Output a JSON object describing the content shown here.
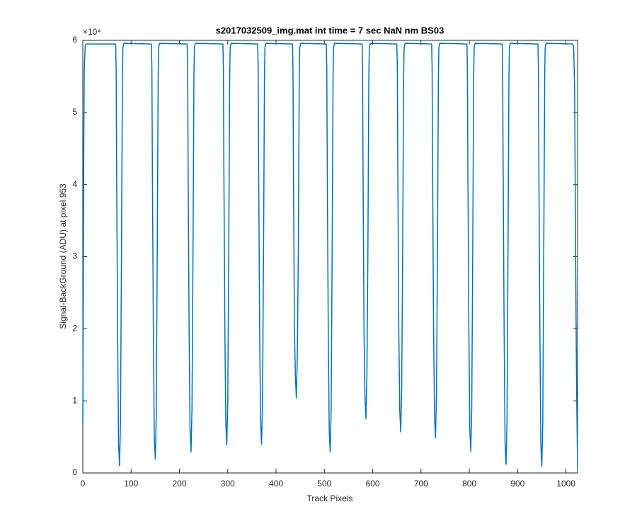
{
  "chart_data": {
    "type": "line",
    "title": "s2017032509_img.mat int time = 7 sec  NaN nm BS03",
    "x_label": "Track Pixels",
    "y_label": "Signal-BackGround (ADU) at pixel 953",
    "y_exponent": "×10⁴",
    "xlim": [
      0,
      1024
    ],
    "xticks": [
      0,
      100,
      200,
      300,
      400,
      500,
      600,
      700,
      800,
      900,
      1000
    ],
    "ylim": [
      0,
      6
    ],
    "yticks": [
      0,
      1,
      2,
      3,
      4,
      5,
      6
    ],
    "series": [
      {
        "color": "#0072bd",
        "x": [
          0,
          1,
          2,
          3,
          5,
          7,
          68,
          69,
          70,
          72,
          74,
          76,
          78,
          80,
          82,
          83,
          85,
          142,
          143,
          144,
          146,
          148,
          150,
          152,
          154,
          156,
          157,
          159,
          216,
          217,
          218,
          220,
          222,
          224,
          226,
          228,
          230,
          231,
          233,
          290,
          291,
          292,
          294,
          296,
          298,
          300,
          302,
          304,
          305,
          307,
          362,
          363,
          364,
          366,
          368,
          370,
          372,
          374,
          376,
          377,
          379,
          434,
          435,
          436,
          438,
          440,
          442,
          444,
          446,
          448,
          449,
          451,
          504,
          505,
          506,
          508,
          510,
          512,
          514,
          516,
          518,
          519,
          521,
          578,
          579,
          580,
          582,
          584,
          586,
          588,
          590,
          592,
          593,
          595,
          650,
          651,
          652,
          654,
          656,
          658,
          660,
          662,
          664,
          665,
          667,
          722,
          723,
          724,
          726,
          728,
          730,
          732,
          734,
          736,
          737,
          739,
          795,
          796,
          797,
          799,
          801,
          803,
          805,
          807,
          809,
          810,
          812,
          868,
          869,
          870,
          872,
          874,
          876,
          878,
          880,
          882,
          883,
          885,
          942,
          943,
          944,
          946,
          948,
          950,
          952,
          954,
          956,
          957,
          959,
          1014,
          1016,
          1018,
          1020,
          1022,
          1024
        ],
        "values": [
          0.68,
          2.5,
          4.5,
          5.6,
          5.93,
          5.95,
          5.95,
          5.6,
          4.2,
          2.0,
          0.4,
          0.1,
          0.7,
          3.0,
          5.5,
          5.9,
          5.96,
          5.95,
          5.6,
          4.2,
          2.0,
          0.49,
          0.19,
          0.79,
          3.0,
          5.5,
          5.9,
          5.96,
          5.95,
          5.6,
          4.2,
          2.0,
          0.59,
          0.29,
          0.89,
          3.0,
          5.5,
          5.9,
          5.96,
          5.95,
          5.6,
          4.2,
          2.0,
          0.69,
          0.39,
          0.99,
          3.0,
          5.5,
          5.9,
          5.96,
          5.95,
          5.6,
          4.2,
          2.0,
          0.7,
          0.4,
          1.0,
          3.0,
          5.5,
          5.9,
          5.96,
          5.95,
          5.6,
          4.2,
          2.0,
          1.34,
          1.04,
          1.64,
          3.0,
          5.5,
          5.9,
          5.96,
          5.95,
          5.6,
          4.2,
          2.0,
          0.59,
          0.29,
          0.89,
          3.0,
          5.5,
          5.9,
          5.96,
          5.95,
          5.6,
          4.2,
          2.0,
          1.05,
          0.75,
          1.35,
          3.0,
          5.5,
          5.9,
          5.96,
          5.95,
          5.6,
          4.2,
          2.0,
          0.87,
          0.57,
          1.17,
          3.0,
          5.5,
          5.9,
          5.96,
          5.95,
          5.6,
          4.2,
          2.0,
          0.79,
          0.49,
          1.09,
          3.0,
          5.5,
          5.9,
          5.96,
          5.95,
          5.6,
          4.2,
          2.0,
          0.6,
          0.3,
          0.9,
          3.0,
          5.5,
          5.9,
          5.96,
          5.95,
          5.6,
          4.2,
          2.0,
          0.42,
          0.12,
          0.72,
          3.0,
          5.5,
          5.9,
          5.96,
          5.95,
          5.6,
          4.2,
          2.0,
          0.39,
          0.09,
          0.69,
          3.0,
          5.5,
          5.9,
          5.96,
          5.95,
          5.9,
          5.3,
          3.0,
          1.2,
          0.07
        ]
      }
    ]
  }
}
